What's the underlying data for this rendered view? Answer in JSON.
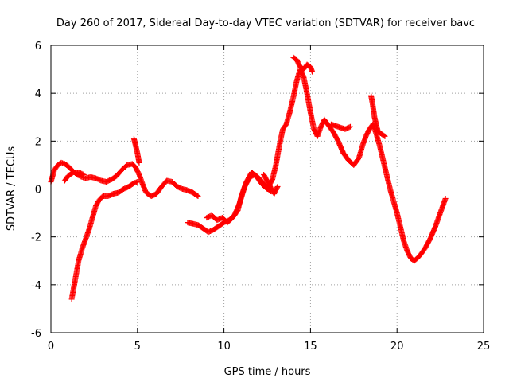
{
  "chart_data": {
    "type": "scatter",
    "title": "Day 260 of 2017, Sidereal Day-to-day VTEC variation (SDTVAR) for receiver bavc",
    "xlabel": "GPS time / hours",
    "ylabel": "SDTVAR / TECUs",
    "xlim": [
      0,
      25
    ],
    "ylim": [
      -6,
      6
    ],
    "xticks": [
      "0",
      "5",
      "10",
      "15",
      "20",
      "25"
    ],
    "yticks": [
      "-6",
      "-4",
      "-2",
      "0",
      "2",
      "4",
      "6"
    ],
    "grid": true,
    "marker": "plus",
    "color": "#ff0000",
    "series": [
      {
        "x": [
          0.0,
          0.2,
          0.4,
          0.6,
          0.8,
          1.0,
          1.2,
          1.5,
          1.8,
          2.0,
          2.3,
          2.6,
          2.9,
          3.2,
          3.5,
          3.8,
          4.1,
          4.4,
          4.7,
          4.9,
          5.1,
          5.3,
          5.5,
          5.8,
          6.1,
          6.4,
          6.7,
          7.0,
          7.3,
          7.6,
          7.9,
          8.2,
          8.5
        ],
        "y": [
          0.3,
          0.8,
          1.0,
          1.1,
          1.05,
          0.95,
          0.8,
          0.6,
          0.5,
          0.45,
          0.5,
          0.45,
          0.35,
          0.3,
          0.4,
          0.55,
          0.8,
          1.0,
          1.05,
          0.9,
          0.6,
          0.2,
          -0.15,
          -0.3,
          -0.2,
          0.1,
          0.35,
          0.3,
          0.1,
          0.0,
          -0.05,
          -0.15,
          -0.3
        ]
      },
      {
        "x": [
          1.2,
          1.4,
          1.6,
          1.8,
          2.0,
          2.2,
          2.4,
          2.6,
          2.8,
          3.0,
          3.3,
          3.6,
          3.9,
          4.2,
          4.5,
          4.8,
          5.0
        ],
        "y": [
          -4.6,
          -3.8,
          -3.0,
          -2.5,
          -2.1,
          -1.7,
          -1.2,
          -0.7,
          -0.45,
          -0.3,
          -0.3,
          -0.2,
          -0.15,
          0.0,
          0.1,
          0.25,
          0.3
        ]
      },
      {
        "x": [
          0.8,
          1.0,
          1.3,
          1.6,
          1.9
        ],
        "y": [
          0.35,
          0.55,
          0.7,
          0.7,
          0.6
        ]
      },
      {
        "x": [
          4.8,
          4.9,
          5.0,
          5.1
        ],
        "y": [
          2.1,
          1.8,
          1.5,
          1.1
        ]
      },
      {
        "x": [
          7.9,
          8.2,
          8.5,
          8.8,
          9.1,
          9.4,
          9.7,
          10.0,
          10.3,
          10.6,
          10.9,
          11.2,
          11.5,
          11.8,
          12.1,
          12.4,
          12.7
        ],
        "y": [
          -1.4,
          -1.45,
          -1.5,
          -1.65,
          -1.8,
          -1.7,
          -1.55,
          -1.4,
          -1.3,
          -1.1,
          -0.6,
          0.1,
          0.5,
          0.6,
          0.4,
          0.1,
          -0.1
        ]
      },
      {
        "x": [
          9.0,
          9.3,
          9.6,
          9.9,
          10.2,
          10.5,
          10.8,
          11.0,
          11.3,
          11.6,
          11.9,
          12.2,
          12.5,
          12.8,
          13.0,
          13.2,
          13.4,
          13.6,
          13.8,
          14.0,
          14.2,
          14.4,
          14.6,
          14.8,
          15.0,
          15.2,
          15.4,
          15.6,
          15.8,
          16.0,
          16.3,
          16.6,
          16.9,
          17.2,
          17.5,
          17.8,
          18.0,
          18.2,
          18.4,
          18.6,
          18.8,
          19.0,
          19.2,
          19.4,
          19.6,
          19.8,
          20.0,
          20.2,
          20.4,
          20.6,
          20.8,
          21.0,
          21.3,
          21.6,
          21.9,
          22.2,
          22.5,
          22.8
        ],
        "y": [
          -1.2,
          -1.1,
          -1.3,
          -1.2,
          -1.4,
          -1.2,
          -0.9,
          -0.3,
          0.3,
          0.7,
          0.5,
          0.2,
          0.0,
          0.4,
          1.0,
          1.8,
          2.5,
          2.7,
          3.2,
          3.8,
          4.5,
          5.0,
          4.7,
          4.0,
          3.2,
          2.5,
          2.2,
          2.6,
          2.9,
          2.7,
          2.4,
          2.0,
          1.5,
          1.2,
          1.0,
          1.3,
          1.8,
          2.2,
          2.5,
          2.7,
          2.3,
          1.8,
          1.2,
          0.6,
          0.0,
          -0.5,
          -1.0,
          -1.6,
          -2.2,
          -2.6,
          -2.9,
          -3.0,
          -2.8,
          -2.5,
          -2.1,
          -1.6,
          -1.0,
          -0.4
        ]
      },
      {
        "x": [
          14.0,
          14.2,
          14.4,
          14.6,
          14.8,
          15.0,
          15.1
        ],
        "y": [
          5.5,
          5.4,
          5.1,
          5.0,
          5.2,
          5.1,
          4.9
        ]
      },
      {
        "x": [
          16.2,
          16.6,
          17.0,
          17.3
        ],
        "y": [
          2.7,
          2.6,
          2.5,
          2.6
        ]
      },
      {
        "x": [
          18.5,
          18.6,
          18.7,
          18.8,
          18.9,
          19.1,
          19.3
        ],
        "y": [
          3.9,
          3.5,
          3.0,
          2.7,
          2.4,
          2.3,
          2.2
        ]
      },
      {
        "x": [
          12.3,
          12.6,
          12.9,
          13.1
        ],
        "y": [
          0.6,
          0.2,
          -0.2,
          0.1
        ]
      }
    ]
  }
}
